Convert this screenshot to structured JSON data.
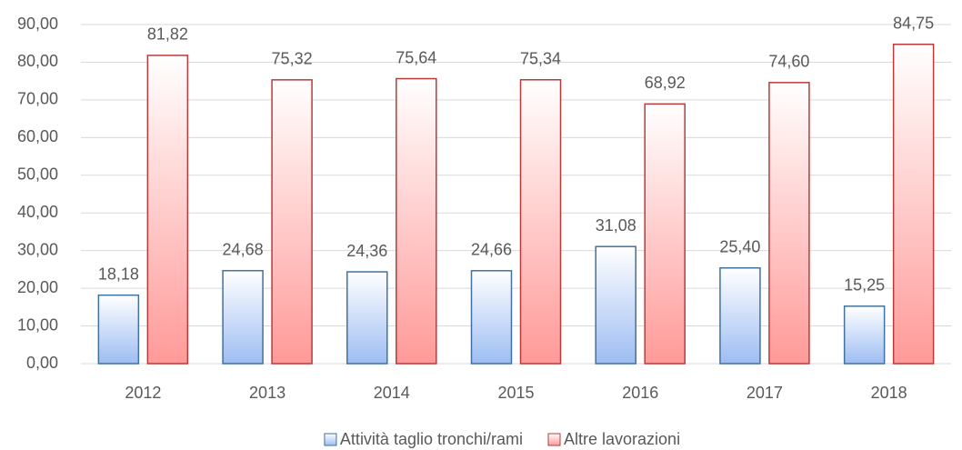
{
  "chart_data": {
    "type": "bar",
    "categories": [
      "2012",
      "2013",
      "2014",
      "2015",
      "2016",
      "2017",
      "2018"
    ],
    "series": [
      {
        "name": "Attività taglio tronchi/rami",
        "color": "#9dbdf2",
        "values": [
          18.18,
          24.68,
          24.36,
          24.66,
          31.08,
          25.4,
          15.25
        ],
        "value_labels": [
          "18,18",
          "24,68",
          "24,36",
          "24,66",
          "31,08",
          "25,40",
          "15,25"
        ]
      },
      {
        "name": "Altre lavorazioni",
        "color": "#ff9a98",
        "values": [
          81.82,
          75.32,
          75.64,
          75.34,
          68.92,
          74.6,
          84.75
        ],
        "value_labels": [
          "81,82",
          "75,32",
          "75,64",
          "75,34",
          "68,92",
          "74,60",
          "84,75"
        ]
      }
    ],
    "ylim": [
      0,
      90
    ],
    "yticks": [
      {
        "value": 0,
        "label": "0,00"
      },
      {
        "value": 10,
        "label": "10,00"
      },
      {
        "value": 20,
        "label": "20,00"
      },
      {
        "value": 30,
        "label": "30,00"
      },
      {
        "value": 40,
        "label": "40,00"
      },
      {
        "value": 50,
        "label": "50,00"
      },
      {
        "value": 60,
        "label": "60,00"
      },
      {
        "value": 70,
        "label": "70,00"
      },
      {
        "value": 80,
        "label": "80,00"
      },
      {
        "value": 90,
        "label": "90,00"
      }
    ],
    "grid": true,
    "legend": "bottom"
  }
}
